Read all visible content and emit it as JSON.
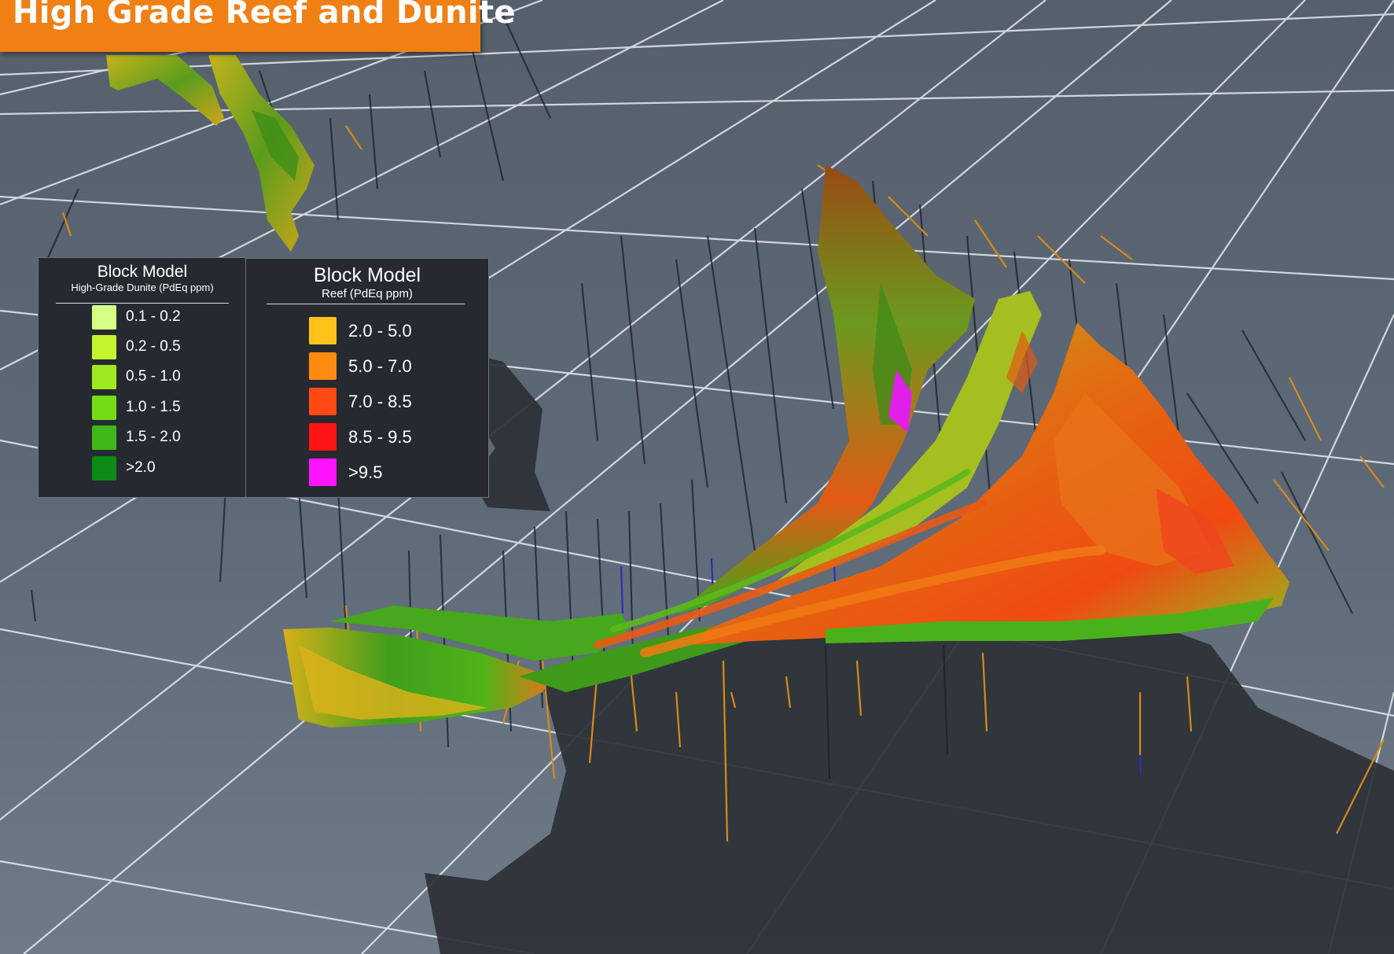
{
  "title": "High Grade Reef and Dunite",
  "legends": {
    "dunite": {
      "title": "Block Model",
      "subtitle": "High-Grade Dunite (PdEq ppm)",
      "items": [
        {
          "label": "0.1 - 0.2",
          "color": "#d6ff86"
        },
        {
          "label": "0.2 - 0.5",
          "color": "#c3f52d"
        },
        {
          "label": "0.5 - 1.0",
          "color": "#9ee81f"
        },
        {
          "label": "1.0 - 1.5",
          "color": "#73dc16"
        },
        {
          "label": "1.5 - 2.0",
          "color": "#3fb817"
        },
        {
          "label": ">2.0",
          "color": "#0c8a16"
        }
      ]
    },
    "reef": {
      "title": "Block Model",
      "subtitle": "Reef (PdEq ppm)",
      "items": [
        {
          "label": "2.0 - 5.0",
          "color": "#ffc21a"
        },
        {
          "label": "5.0 - 7.0",
          "color": "#ff8a10"
        },
        {
          "label": "7.0 - 8.5",
          "color": "#ff4a14"
        },
        {
          "label": "8.5 - 9.5",
          "color": "#ff1414"
        },
        {
          "label": ">9.5",
          "color": "#ff14ff"
        }
      ]
    }
  }
}
